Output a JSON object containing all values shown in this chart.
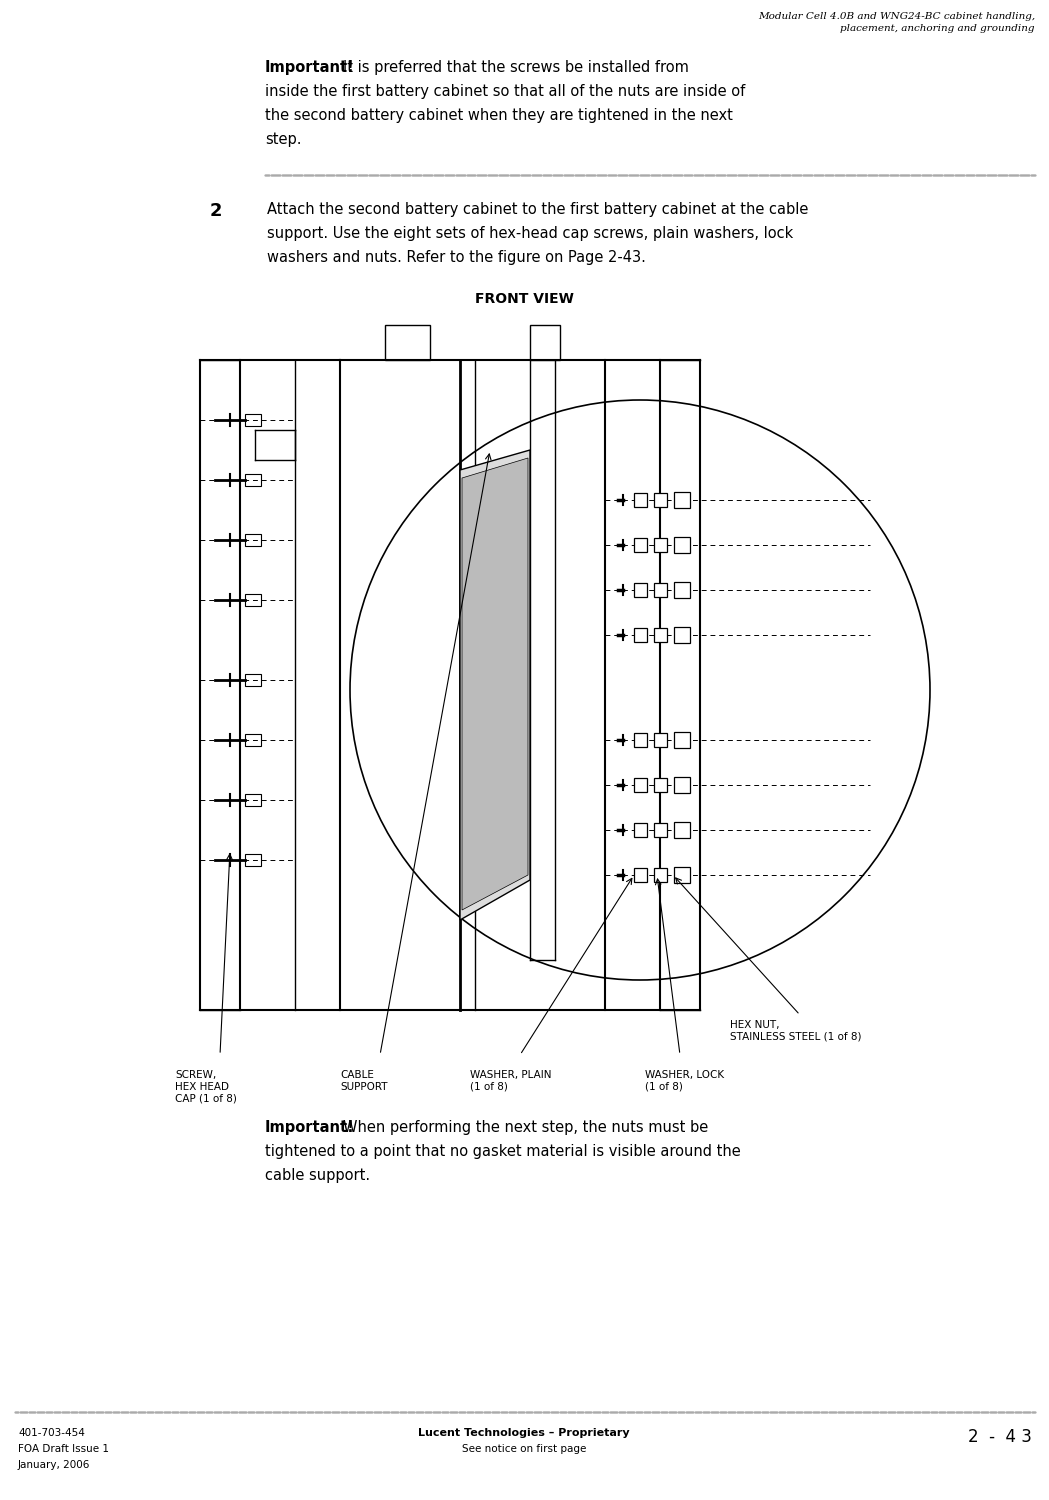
{
  "bg_color": "#ffffff",
  "page_width": 10.49,
  "page_height": 15.0,
  "header_line1": "Modular Cell 4.0B and WNG24-BC cabinet handling,",
  "header_line2": "placement, anchoring and grounding",
  "imp1_bold": "Important!",
  "imp1_text": "It is preferred that the screws be installed from inside the first battery cabinet so that all of the nuts are inside of the second battery cabinet when they are tightened in the next step.",
  "step2_num": "2",
  "step2_text": "Attach the second battery cabinet to the first battery cabinet at the cable support. Use the eight sets of hex-head cap screws, plain washers, lock washers and nuts. Refer to the figure on Page 2-43.",
  "front_view": "FRONT VIEW",
  "imp2_bold": "Important!",
  "imp2_text": "When performing the next step, the nuts must be tightened to a point that no gasket material is visible around the cable support.",
  "lbl_screw": "SCREW,\nHEX HEAD\nCAP (1 of 8)",
  "lbl_cable": "CABLE\nSUPPORT",
  "lbl_washer_plain": "WASHER, PLAIN\n(1 of 8)",
  "lbl_hex_nut": "HEX NUT,\nSTAINLESS STEEL (1 of 8)",
  "lbl_washer_lock": "WASHER, LOCK\n(1 of 8)",
  "footer_left": [
    "401-703-454",
    "FOA Draft Issue 1",
    "January, 2006"
  ],
  "footer_center1": "Lucent Technologies – Proprietary",
  "footer_center2": "See notice on first page",
  "footer_right": "2  -  4 3"
}
